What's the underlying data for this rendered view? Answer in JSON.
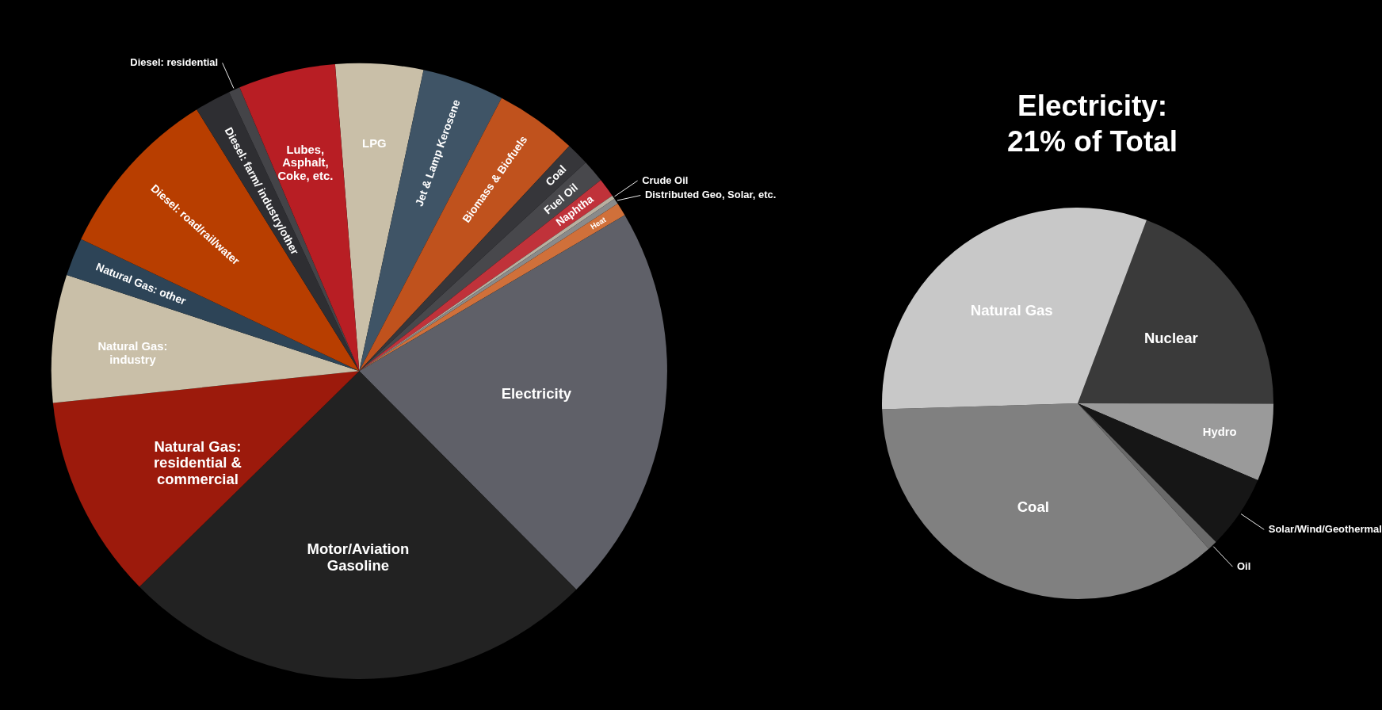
{
  "chart_data": [
    {
      "type": "pie",
      "categories": [
        "LPG",
        "Jet & Lamp Kerosene",
        "Biomass & Biofuels",
        "Coal",
        "Fuel Oil",
        "Naphtha",
        "Crude Oil",
        "Distributed Geo, Solar, etc.",
        "Heat",
        "Electricity",
        "Motor/Aviation Gasoline",
        "Natural Gas: residential & commercial",
        "Natural Gas: industry",
        "Natural Gas: other",
        "Diesel: road/rail/water",
        "Diesel: farm/ industry/other",
        "Diesel: residential",
        "Lubes, Asphalt, Coke, etc."
      ],
      "values": [
        4.6,
        4.3,
        4.3,
        1.2,
        1.2,
        1.0,
        0.2,
        0.3,
        0.7,
        21,
        25.1,
        10.7,
        6.7,
        2.0,
        9.1,
        1.9,
        0.6,
        5.1
      ],
      "colors": [
        "#c9bfa8",
        "#3f5466",
        "#c0521d",
        "#36363a",
        "#48484c",
        "#c0323a",
        "#b8b0a0",
        "#8a8a8a",
        "#d0703a",
        "#5f6068",
        "#222222",
        "#9c1a0c",
        "#c9bfa8",
        "#2d4457",
        "#b83e00",
        "#2e2e32",
        "#444448",
        "#b81e24"
      ]
    },
    {
      "type": "pie",
      "title": "Electricity:",
      "subtitle": "21% of Total",
      "categories": [
        "Nuclear",
        "Hydro",
        "Solar/Wind/Geothermal",
        "Oil",
        "Coal",
        "Natural Gas"
      ],
      "values": [
        19.3,
        6.4,
        6.1,
        0.8,
        36.2,
        31.2
      ],
      "colors": [
        "#3a3a3a",
        "#9a9a9a",
        "#161616",
        "#6a6a6a",
        "#808080",
        "#c8c8c8"
      ]
    }
  ]
}
